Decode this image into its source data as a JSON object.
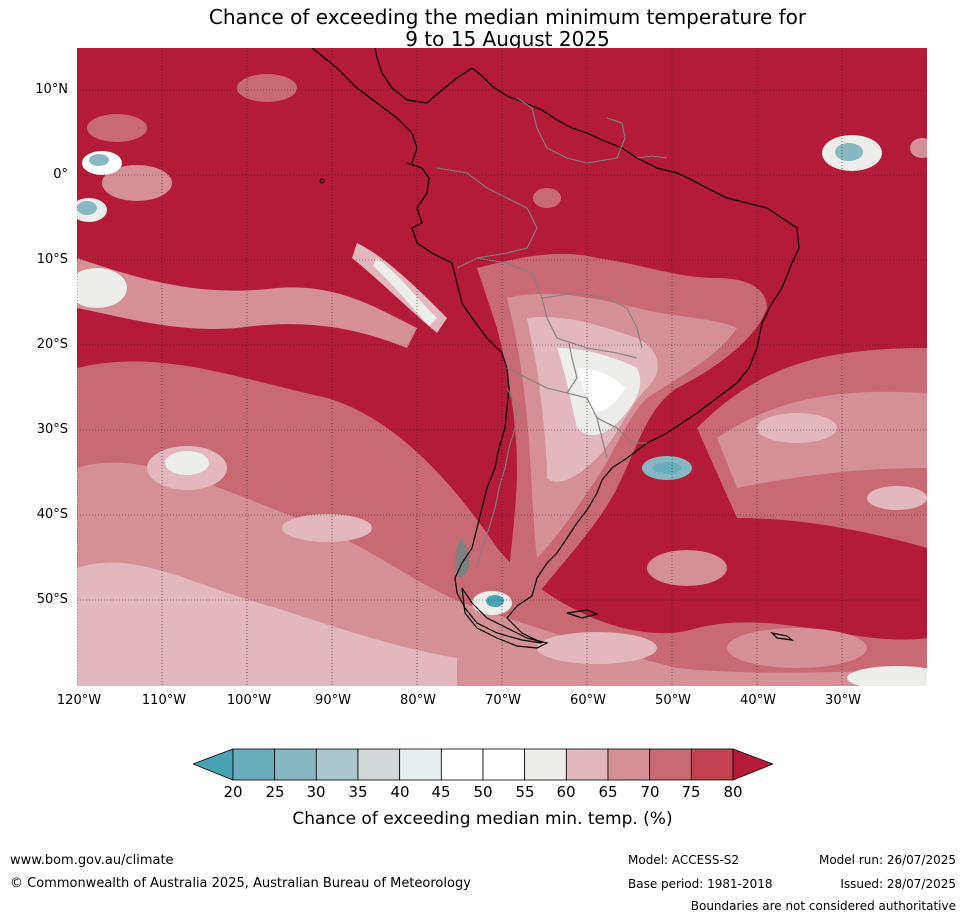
{
  "title": {
    "line1": "Chance of exceeding the median minimum temperature for",
    "line2": "9 to 15 August 2025"
  },
  "map": {
    "latitude_labels": [
      "10°N",
      "0°",
      "10°S",
      "20°S",
      "30°S",
      "40°S",
      "50°S"
    ],
    "longitude_labels": [
      "120°W",
      "110°W",
      "100°W",
      "90°W",
      "80°W",
      "70°W",
      "60°W",
      "50°W",
      "40°W",
      "30°W"
    ],
    "colors": {
      "above_80": "#b31b36",
      "band_75_80": "#c2414f",
      "band_70_75": "#c96a73",
      "band_65_70": "#d48f97",
      "band_60_65": "#e2b7bd",
      "band_55_60": "#ededeb",
      "band_45_55": "#ffffff",
      "band_40_45": "#e8eff1",
      "band_35_40": "#d2d8d7",
      "band_30_35": "#a8c6cc",
      "band_25_30": "#89b6c3",
      "band_20_25": "#6aadbb",
      "below_20": "#4aa3b3",
      "coastline": "#000000",
      "borders": "#808080",
      "gridlines": "#222222"
    }
  },
  "colorbar": {
    "ticks": [
      "20",
      "25",
      "30",
      "35",
      "40",
      "45",
      "50",
      "55",
      "60",
      "65",
      "70",
      "75",
      "80"
    ],
    "colors": [
      "#6aadbb",
      "#89b6c3",
      "#a8c6cc",
      "#d2d8d7",
      "#e8eff1",
      "#ffffff",
      "#ffffff",
      "#ededeb",
      "#e2b7bd",
      "#d48f97",
      "#c96a73",
      "#c2414f"
    ],
    "low_extend_color": "#4aa3b3",
    "high_extend_color": "#b31b36",
    "label": "Chance of exceeding median min. temp. (%)"
  },
  "footer": {
    "website": "www.bom.gov.au/climate",
    "copyright": "© Commonwealth of Australia 2025, Australian Bureau of Meteorology",
    "model": "Model: ACCESS-S2",
    "base_period": "Base period: 1981-2018",
    "model_run": "Model run: 26/07/2025",
    "issued": "Issued: 28/07/2025",
    "disclaimer": "Boundaries are not considered authoritative"
  }
}
